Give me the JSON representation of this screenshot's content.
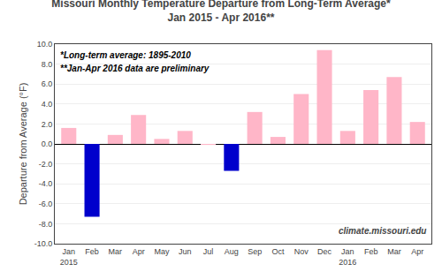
{
  "chart_data": {
    "type": "bar",
    "title": "Missouri Monthly Temperature Departure from Long-Term Average*",
    "subtitle": "Jan 2015 - Apr 2016**",
    "ylabel": "Departure from Average (°F)",
    "annotations": [
      "*Long-term average: 1895-2010",
      "**Jan-Apr 2016 data are preliminary"
    ],
    "watermark": "climate.missouri.edu",
    "categories": [
      "Jan\n2015",
      "Feb",
      "Mar",
      "Apr",
      "May",
      "Jun",
      "Jul",
      "Aug",
      "Sep",
      "Oct",
      "Nov",
      "Dec",
      "Jan\n2016",
      "Feb",
      "Mar",
      "Apr"
    ],
    "values": [
      1.6,
      -7.3,
      0.9,
      2.9,
      0.5,
      1.3,
      -0.1,
      -2.7,
      3.2,
      0.7,
      5.0,
      9.4,
      1.3,
      5.4,
      6.7,
      2.2
    ],
    "colors": [
      "#FFB6C8",
      "#0000CC",
      "#FFB6C8",
      "#FFB6C8",
      "#FFB6C8",
      "#FFB6C8",
      "#FFB6C8",
      "#0000CC",
      "#FFB6C8",
      "#FFB6C8",
      "#FFB6C8",
      "#FFB6C8",
      "#FFB6C8",
      "#FFB6C8",
      "#FFB6C8",
      "#FFB6C8"
    ],
    "ylim": [
      -10.0,
      10.0
    ],
    "yticks": [
      {
        "value": -10.0,
        "label": "-10.0"
      },
      {
        "value": -8.0,
        "label": "-8.0"
      },
      {
        "value": -6.0,
        "label": "-6.0"
      },
      {
        "value": -4.0,
        "label": "-4.0"
      },
      {
        "value": -2.0,
        "label": "-2.0"
      },
      {
        "value": 0.0,
        "label": "0.0"
      },
      {
        "value": 2.0,
        "label": "2.0"
      },
      {
        "value": 4.0,
        "label": "4.0"
      },
      {
        "value": 6.0,
        "label": "6.0"
      },
      {
        "value": 8.0,
        "label": "8.0"
      },
      {
        "value": 10.0,
        "label": "10.0"
      }
    ],
    "grid": true
  }
}
